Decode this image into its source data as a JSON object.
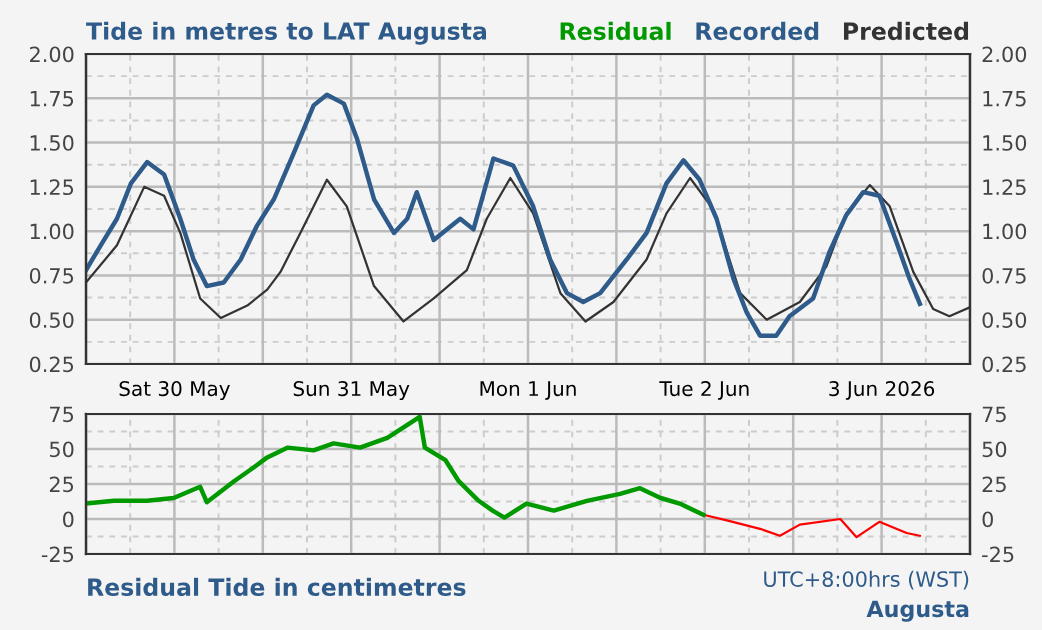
{
  "chart_data": [
    {
      "type": "line",
      "title": "Tide in metres to LAT Augusta",
      "legend": "top right",
      "grid": true,
      "xlim": [
        "2026-05-30T00:00",
        "2026-06-04T00:00"
      ],
      "xticks": [
        {
          "value": "2026-05-30T00:00",
          "label": null
        },
        {
          "value": "2026-05-30T12:00",
          "label": "Sat 30 May"
        },
        {
          "value": "2026-05-31T00:00",
          "label": null
        },
        {
          "value": "2026-05-31T12:00",
          "label": "Sun 31 May"
        },
        {
          "value": "2026-06-01T00:00",
          "label": null
        },
        {
          "value": "2026-06-01T12:00",
          "label": "Mon 1 Jun"
        },
        {
          "value": "2026-06-02T00:00",
          "label": null
        },
        {
          "value": "2026-06-02T12:00",
          "label": "Tue 2 Jun"
        },
        {
          "value": "2026-06-03T00:00",
          "label": null
        },
        {
          "value": "2026-06-03T12:00",
          "label": "3 Jun 2026"
        },
        {
          "value": "2026-06-04T00:00",
          "label": null
        }
      ],
      "ylim": [
        0.25,
        2.0
      ],
      "yticks": [
        0.25,
        {
          "value": 0.5,
          "label": "0.50"
        },
        0.75,
        {
          "value": 1.0,
          "label": "1.00"
        },
        1.25,
        {
          "value": 1.5,
          "label": "1.50"
        },
        1.75,
        {
          "value": 2.0,
          "label": "2.00"
        }
      ],
      "y2lim": [
        0.25,
        2.0
      ],
      "y2ticks": [
        0.25,
        {
          "value": 0.5,
          "label": "0.50"
        },
        0.75,
        {
          "value": 1.0,
          "label": "1.00"
        },
        1.25,
        {
          "value": 1.5,
          "label": "1.50"
        },
        1.75,
        {
          "value": 2.0,
          "label": "2.00"
        }
      ],
      "series": [
        {
          "name": "Recorded",
          "color": "#2e5b8a",
          "x": [
            "2026-05-30T00:00",
            "2026-05-30T02:00",
            "2026-05-30T04:12",
            "2026-05-30T06:06",
            "2026-05-30T08:18",
            "2026-05-30T10:36",
            "2026-05-30T12:48",
            "2026-05-30T14:36",
            "2026-05-30T16:24",
            "2026-05-30T18:42",
            "2026-05-30T21:00",
            "2026-05-30T23:12",
            "2026-05-31T01:30",
            "2026-05-31T04:12",
            "2026-05-31T06:54",
            "2026-05-31T08:42",
            "2026-05-31T11:00",
            "2026-05-31T12:48",
            "2026-05-31T15:06",
            "2026-05-31T17:48",
            "2026-05-31T19:36",
            "2026-05-31T20:54",
            "2026-05-31T23:12",
            "2026-06-01T02:48",
            "2026-06-01T04:36",
            "2026-06-01T07:18",
            "2026-06-01T10:00",
            "2026-06-01T12:42",
            "2026-06-01T15:00",
            "2026-06-01T17:18",
            "2026-06-01T19:30",
            "2026-06-01T21:48",
            "2026-06-02T01:24",
            "2026-06-02T04:06",
            "2026-06-02T06:48",
            "2026-06-02T09:06",
            "2026-06-02T11:18",
            "2026-06-02T13:36",
            "2026-06-02T15:54",
            "2026-06-02T17:42",
            "2026-06-02T19:30",
            "2026-06-02T21:42",
            "2026-06-02T23:30",
            "2026-06-03T02:42",
            "2026-06-03T04:54",
            "2026-06-03T07:12",
            "2026-06-03T09:30",
            "2026-06-03T11:42",
            "2026-06-03T14:00",
            "2026-06-03T15:48",
            "2026-06-03T17:12"
          ],
          "values": [
            0.78,
            0.92,
            1.07,
            1.27,
            1.39,
            1.32,
            1.07,
            0.84,
            0.69,
            0.71,
            0.84,
            1.03,
            1.18,
            1.44,
            1.71,
            1.77,
            1.72,
            1.52,
            1.18,
            0.99,
            1.07,
            1.22,
            0.95,
            1.07,
            1.01,
            1.41,
            1.37,
            1.14,
            0.84,
            0.65,
            0.6,
            0.65,
            0.84,
            0.99,
            1.27,
            1.4,
            1.29,
            1.07,
            0.73,
            0.54,
            0.41,
            0.41,
            0.52,
            0.62,
            0.88,
            1.09,
            1.22,
            1.2,
            0.94,
            0.73,
            0.59
          ]
        },
        {
          "name": "Predicted",
          "color": "#333333",
          "x": [
            "2026-05-30T00:00",
            "2026-05-30T04:12",
            "2026-05-30T07:54",
            "2026-05-30T10:36",
            "2026-05-30T12:48",
            "2026-05-30T15:30",
            "2026-05-30T18:18",
            "2026-05-30T21:54",
            "2026-05-31T00:36",
            "2026-05-31T02:24",
            "2026-05-31T05:06",
            "2026-05-31T08:42",
            "2026-05-31T11:24",
            "2026-05-31T15:06",
            "2026-05-31T19:06",
            "2026-05-31T23:12",
            "2026-06-01T03:42",
            "2026-06-01T06:24",
            "2026-06-01T09:36",
            "2026-06-01T12:42",
            "2026-06-01T16:24",
            "2026-06-01T19:48",
            "2026-06-01T23:36",
            "2026-06-02T04:06",
            "2026-06-02T06:48",
            "2026-06-02T10:00",
            "2026-06-02T13:12",
            "2026-06-02T16:48",
            "2026-06-02T20:24",
            "2026-06-03T00:54",
            "2026-06-03T04:30",
            "2026-06-03T07:12",
            "2026-06-03T10:24",
            "2026-06-03T13:06",
            "2026-06-03T16:18",
            "2026-06-03T19:00",
            "2026-06-03T21:12",
            "2026-06-04T00:00"
          ],
          "values": [
            0.71,
            0.92,
            1.25,
            1.2,
            0.99,
            0.62,
            0.51,
            0.58,
            0.67,
            0.77,
            0.99,
            1.29,
            1.14,
            0.69,
            0.49,
            0.62,
            0.78,
            1.07,
            1.3,
            1.1,
            0.65,
            0.49,
            0.6,
            0.84,
            1.1,
            1.3,
            1.12,
            0.65,
            0.5,
            0.6,
            0.8,
            1.1,
            1.26,
            1.14,
            0.77,
            0.56,
            0.52,
            0.57
          ]
        }
      ]
    },
    {
      "type": "line",
      "grid": true,
      "tick_labels": "y",
      "annotations": [
        "Residual Tide in centimetres",
        "UTC+8:00hrs (WST)",
        "Augusta"
      ],
      "xlim": [
        "2026-05-30T00:00",
        "2026-06-04T00:00"
      ],
      "xticks": [
        {
          "value": "2026-05-30T00:00",
          "label": null
        },
        {
          "value": "2026-05-30T12:00",
          "label": null
        },
        {
          "value": "2026-05-31T00:00",
          "label": null
        },
        {
          "value": "2026-05-31T12:00",
          "label": null
        },
        {
          "value": "2026-06-01T00:00",
          "label": null
        },
        {
          "value": "2026-06-01T12:00",
          "label": null
        },
        {
          "value": "2026-06-02T00:00",
          "label": null
        },
        {
          "value": "2026-06-02T12:00",
          "label": null
        },
        {
          "value": "2026-06-03T00:00",
          "label": null
        },
        {
          "value": "2026-06-03T12:00",
          "label": null
        },
        {
          "value": "2026-06-04T00:00",
          "label": null
        }
      ],
      "ylim": [
        -25,
        75
      ],
      "yticks": [
        -25,
        0,
        25,
        50,
        75
      ],
      "y2lim": [
        -25,
        75
      ],
      "y2ticks": [
        -25,
        0,
        25,
        50,
        75
      ],
      "series": [
        {
          "name": "Residual",
          "color": "#009900",
          "x": [
            "2026-05-30T00:00",
            "2026-05-30T03:48",
            "2026-05-30T08:18",
            "2026-05-30T11:54",
            "2026-05-30T15:30",
            "2026-05-30T16:24",
            "2026-05-30T20:06",
            "2026-05-30T22:48",
            "2026-05-31T00:36",
            "2026-05-31T03:24",
            "2026-05-31T06:54",
            "2026-05-31T09:36",
            "2026-05-31T13:12",
            "2026-05-31T16:54",
            "2026-05-31T21:18",
            "2026-05-31T22:00",
            "2026-06-01T00:48",
            "2026-06-01T02:36",
            "2026-06-01T05:18",
            "2026-06-01T07:12",
            "2026-06-01T08:48",
            "2026-06-01T11:48",
            "2026-06-01T15:30",
            "2026-06-01T20:00",
            "2026-06-02T00:30",
            "2026-06-02T03:12",
            "2026-06-02T06:00",
            "2026-06-02T08:36",
            "2026-06-02T11:48"
          ],
          "values": [
            11,
            13,
            13,
            15,
            23,
            12,
            27,
            37,
            44,
            51,
            49,
            54,
            51,
            58,
            73,
            51,
            42,
            27,
            13,
            6,
            1,
            11,
            6,
            13,
            18,
            22,
            15,
            11,
            3
          ]
        },
        {
          "color": "#ff0000",
          "x": [
            "2026-06-02T11:48",
            "2026-06-02T15:00",
            "2026-06-02T19:30",
            "2026-06-02T22:12",
            "2026-06-03T00:54",
            "2026-06-03T06:24",
            "2026-06-03T08:36",
            "2026-06-03T11:42",
            "2026-06-03T15:24",
            "2026-06-03T17:12"
          ],
          "values": [
            3,
            -1,
            -7,
            -12,
            -4,
            0,
            -13,
            -2,
            -10,
            -12
          ]
        }
      ]
    }
  ]
}
